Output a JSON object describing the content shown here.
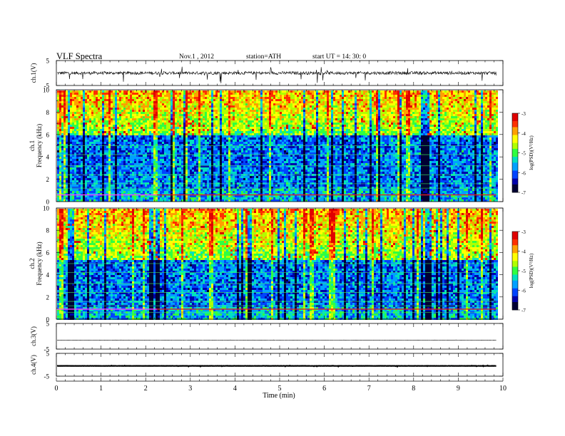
{
  "header": {
    "title": "VLF  Spectra",
    "date": "Nov.1  , 2012",
    "station": "station=ATH",
    "start": "start  UT  =   14: 30: 0"
  },
  "chart_data": [
    {
      "type": "line",
      "name": "ch1-waveform",
      "ylabel": "ch.1(V)",
      "ylim": [
        -5,
        5
      ],
      "yticks": [
        "5",
        "-5"
      ],
      "baseline": 0,
      "spike_amplitude": 3.5,
      "x_end": 9.85
    },
    {
      "type": "heatmap",
      "name": "ch1-spectrogram",
      "ylabel": "ch.1\nFrequency  (kHz)",
      "ylabel_channel": "ch.1",
      "ylabel_freq": "Frequency  (kHz)",
      "ylim": [
        0,
        10
      ],
      "yticks": [
        "0",
        "2",
        "4",
        "6",
        "8",
        "10"
      ],
      "colorbar_label": "log(PSD)(V²/Hz)",
      "colorbar_ticks": [
        "-3",
        "-4",
        "-5",
        "-6",
        "-7"
      ],
      "band_kHz": [
        6,
        10
      ],
      "strong_line_kHz": 0.6
    },
    {
      "type": "heatmap",
      "name": "ch2-spectrogram",
      "ylabel": "ch.2\nFrequency  (kHz)",
      "ylabel_channel": "ch.2",
      "ylabel_freq": "Frequency  (kHz)",
      "ylim": [
        0,
        10
      ],
      "yticks": [
        "0",
        "2",
        "4",
        "6",
        "8",
        "10"
      ],
      "colorbar_label": "log(PSD)(V²/Hz)",
      "colorbar_ticks": [
        "-3",
        "-4",
        "-5",
        "-6",
        "-7"
      ],
      "band_kHz": [
        5.5,
        10
      ],
      "strong_line_kHz": 0.9
    },
    {
      "type": "line",
      "name": "ch3-waveform",
      "ylabel": "ch.3(V)",
      "ylim": [
        -5,
        5
      ],
      "yticks": [
        "5",
        "-5"
      ],
      "baseline": -1.5,
      "spike_amplitude": 0.1,
      "x_end": 9.85
    },
    {
      "type": "line",
      "name": "ch4-waveform",
      "ylabel": "ch.4(V)",
      "ylim": [
        -5,
        5
      ],
      "yticks": [
        "5",
        "-5"
      ],
      "baseline": -0.5,
      "spike_amplitude": 0.2,
      "x_end": 9.85
    }
  ],
  "xaxis": {
    "label": "Time  (min)",
    "xlim": [
      0,
      10
    ],
    "ticks": [
      "0",
      "1",
      "2",
      "3",
      "4",
      "5",
      "6",
      "7",
      "8",
      "9",
      "10"
    ]
  },
  "colors": {
    "colormap": [
      "#000033",
      "#0000aa",
      "#0044ff",
      "#00a0ff",
      "#00e0c0",
      "#30ff40",
      "#b0ff00",
      "#ffff00",
      "#ffa000",
      "#ff3000",
      "#e00000",
      "#ffffff"
    ]
  }
}
